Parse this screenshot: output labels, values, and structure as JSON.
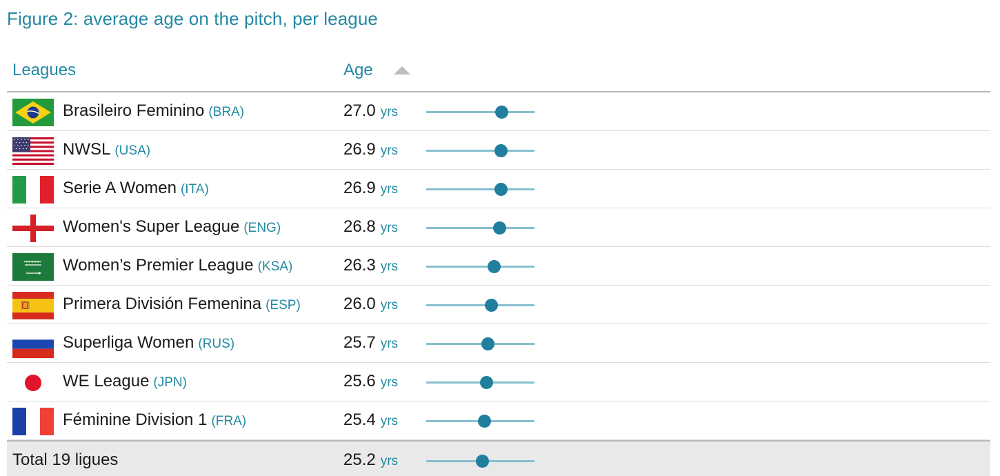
{
  "title": "Figure 2: average age on the pitch, per league",
  "columns": {
    "leagues": "Leagues",
    "age": "Age"
  },
  "unit": "yrs",
  "colors": {
    "accent": "#2389a3",
    "dot": "#1f7f9c",
    "track": "#86bfd0"
  },
  "rows": [
    {
      "name": "Brasileiro Feminino",
      "code": "(BRA)",
      "age": "27.0",
      "flag": "flag-bra-icon"
    },
    {
      "name": "NWSL",
      "code": "(USA)",
      "age": "26.9",
      "flag": "flag-usa-icon"
    },
    {
      "name": "Serie A Women",
      "code": "(ITA)",
      "age": "26.9",
      "flag": "flag-ita-icon"
    },
    {
      "name": "Women's Super League",
      "code": "(ENG)",
      "age": "26.8",
      "flag": "flag-eng-icon"
    },
    {
      "name": "Women’s Premier League",
      "code": "(KSA)",
      "age": "26.3",
      "flag": "flag-ksa-icon"
    },
    {
      "name": "Primera División Femenina",
      "code": "(ESP)",
      "age": "26.0",
      "flag": "flag-esp-icon"
    },
    {
      "name": "Superliga Women",
      "code": "(RUS)",
      "age": "25.7",
      "flag": "flag-rus-icon"
    },
    {
      "name": "WE League",
      "code": "(JPN)",
      "age": "25.6",
      "flag": "flag-jpn-icon"
    },
    {
      "name": "Féminine Division 1",
      "code": "(FRA)",
      "age": "25.4",
      "flag": "flag-fra-icon"
    }
  ],
  "total": {
    "name": "Total 19 ligues",
    "age": "25.2"
  },
  "chart_data": {
    "type": "table",
    "xlabel": "Age",
    "xlim": [
      20,
      30
    ],
    "categories": [
      "Brasileiro Feminino",
      "NWSL",
      "Serie A Women",
      "Women's Super League",
      "Women’s Premier League",
      "Primera División Femenina",
      "Superliga Women",
      "WE League",
      "Féminine Division 1",
      "Total 19 ligues"
    ],
    "values": [
      27.0,
      26.9,
      26.9,
      26.8,
      26.3,
      26.0,
      25.7,
      25.6,
      25.4,
      25.2
    ]
  }
}
